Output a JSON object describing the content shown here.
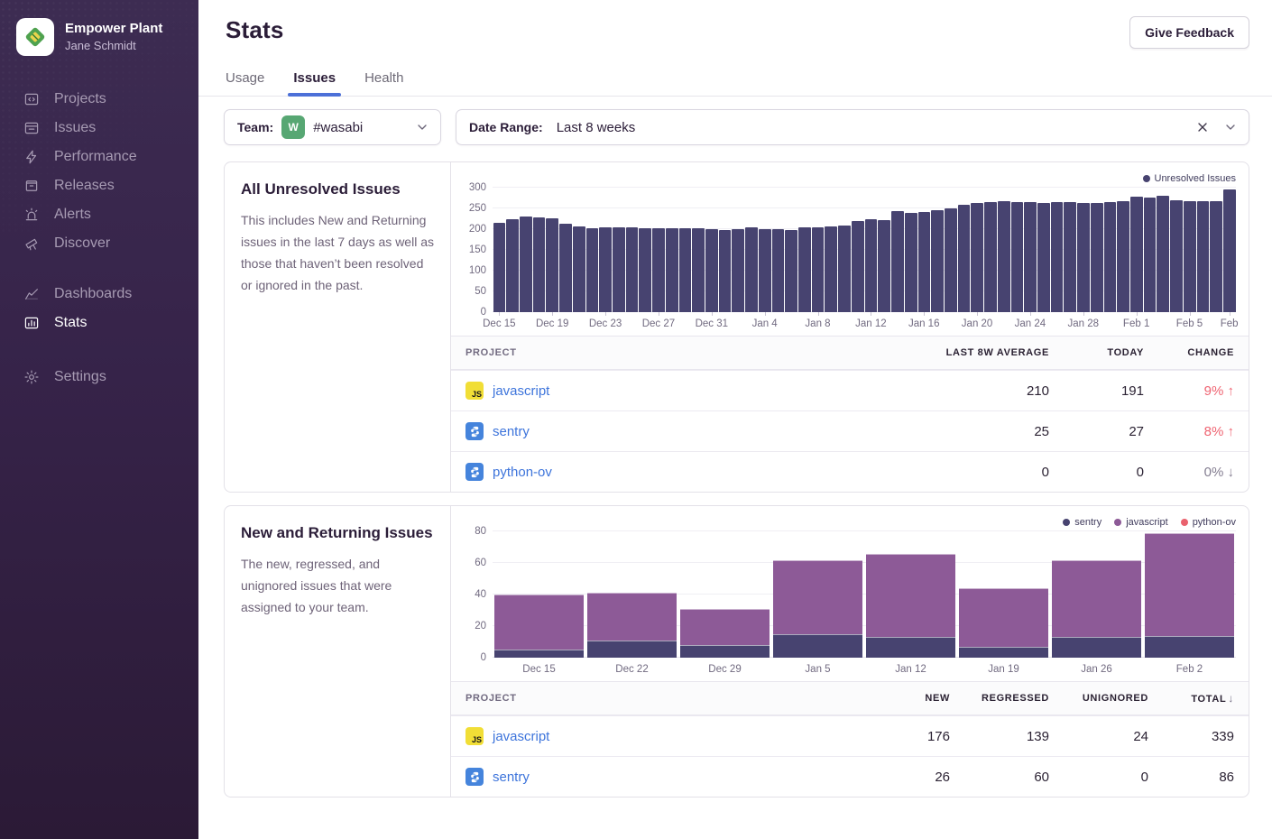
{
  "colors": {
    "accent_blue": "#3D74DB",
    "tab_underline": "#4C70D8",
    "change_bad_red": "#EF6472",
    "change_neutral_gray": "#847E91",
    "unresolved_bar": "#474370",
    "sentry_series": "#474370",
    "javascript_series": "#8D5A97",
    "python_ov_series": "#E9626E",
    "team_avatar_green": "#57A773",
    "js_icon_yellow": "#F1DE36",
    "python_icon_blue": "#4584DC"
  },
  "sidebar": {
    "org_name": "Empower Plant",
    "user_name": "Jane Schmidt",
    "nav_primary": [
      {
        "label": "Projects",
        "icon": "projects-icon",
        "active": false
      },
      {
        "label": "Issues",
        "icon": "issues-icon",
        "active": false
      },
      {
        "label": "Performance",
        "icon": "performance-icon",
        "active": false
      },
      {
        "label": "Releases",
        "icon": "releases-icon",
        "active": false
      },
      {
        "label": "Alerts",
        "icon": "alerts-icon",
        "active": false
      },
      {
        "label": "Discover",
        "icon": "discover-icon",
        "active": false
      }
    ],
    "nav_secondary": [
      {
        "label": "Dashboards",
        "icon": "dashboards-icon",
        "active": false
      },
      {
        "label": "Stats",
        "icon": "stats-icon",
        "active": true
      }
    ],
    "nav_tertiary": [
      {
        "label": "Settings",
        "icon": "settings-icon",
        "active": false
      }
    ]
  },
  "header": {
    "title": "Stats",
    "feedback_button": "Give Feedback"
  },
  "tabs": [
    {
      "label": "Usage",
      "active": false
    },
    {
      "label": "Issues",
      "active": true
    },
    {
      "label": "Health",
      "active": false
    }
  ],
  "filters": {
    "team_label": "Team:",
    "team_avatar_letter": "W",
    "team_value": "#wasabi",
    "date_label": "Date Range:",
    "date_value": "Last 8 weeks"
  },
  "cards": [
    {
      "title": "All Unresolved Issues",
      "description": "This includes New and Returning issues in the last 7 days as well as those that haven’t been resolved or ignored in the past.",
      "table": {
        "headers": [
          "PROJECT",
          "LAST 8W AVERAGE",
          "TODAY",
          "CHANGE"
        ],
        "rows": [
          {
            "project": "javascript",
            "platform": "javascript",
            "values": [
              "210",
              "191"
            ],
            "change": "9%",
            "change_dir": "up",
            "change_tone": "bad"
          },
          {
            "project": "sentry",
            "platform": "python",
            "values": [
              "25",
              "27"
            ],
            "change": "8%",
            "change_dir": "up",
            "change_tone": "bad"
          },
          {
            "project": "python-ov",
            "platform": "python",
            "values": [
              "0",
              "0"
            ],
            "change": "0%",
            "change_dir": "down",
            "change_tone": "neutral"
          }
        ]
      }
    },
    {
      "title": "New and Returning Issues",
      "description": "The new, regressed, and unignored issues that were assigned to your team.",
      "table": {
        "headers": [
          "PROJECT",
          "NEW",
          "REGRESSED",
          "UNIGNORED",
          "TOTAL"
        ],
        "sorted_by": "TOTAL",
        "sort_dir": "desc",
        "rows": [
          {
            "project": "javascript",
            "platform": "javascript",
            "values": [
              "176",
              "139",
              "24",
              "339"
            ]
          },
          {
            "project": "sentry",
            "platform": "python",
            "values": [
              "26",
              "60",
              "0",
              "86"
            ]
          }
        ]
      }
    }
  ],
  "chart_data": [
    {
      "type": "bar",
      "title": "All Unresolved Issues (daily, last 8 weeks)",
      "ylim": [
        0,
        300
      ],
      "yticks": [
        0,
        50,
        100,
        150,
        200,
        250,
        300
      ],
      "grid": true,
      "legend_position": "top-right",
      "x_tick_labels": [
        "Dec 15",
        "Dec 19",
        "Dec 23",
        "Dec 27",
        "Dec 31",
        "Jan 4",
        "Jan 8",
        "Jan 12",
        "Jan 16",
        "Jan 20",
        "Jan 24",
        "Jan 28",
        "Feb 1",
        "Feb 5",
        "Feb"
      ],
      "x_tick_indices": [
        0,
        4,
        8,
        12,
        16,
        20,
        24,
        28,
        32,
        36,
        40,
        44,
        48,
        52,
        55
      ],
      "series": [
        {
          "name": "Unresolved Issues",
          "color": "#474370",
          "values": [
            216,
            224,
            230,
            229,
            226,
            214,
            206,
            202,
            205,
            204,
            204,
            202,
            203,
            203,
            203,
            203,
            201,
            198,
            200,
            204,
            201,
            199,
            197,
            204,
            205,
            206,
            208,
            220,
            224,
            221,
            243,
            240,
            242,
            246,
            251,
            259,
            263,
            266,
            268,
            266,
            266,
            263,
            265,
            265,
            263,
            264,
            265,
            267,
            278,
            276,
            281,
            270,
            268,
            267,
            268,
            296
          ]
        }
      ]
    },
    {
      "type": "stacked-bar",
      "title": "New and Returning Issues (weekly, last 8 weeks)",
      "ylim": [
        0,
        80
      ],
      "yticks": [
        0,
        20,
        40,
        60,
        80
      ],
      "grid": true,
      "legend_position": "top-right",
      "categories": [
        "Dec 15",
        "Dec 22",
        "Dec 29",
        "Jan 5",
        "Jan 12",
        "Jan 19",
        "Jan 26",
        "Feb 2"
      ],
      "series": [
        {
          "name": "sentry",
          "color": "#474370",
          "values": [
            5,
            11,
            8,
            15,
            13,
            7,
            13,
            14
          ]
        },
        {
          "name": "javascript",
          "color": "#8D5A97",
          "values": [
            35,
            30,
            23,
            47,
            53,
            37,
            49,
            65
          ]
        },
        {
          "name": "python-ov",
          "color": "#E9626E",
          "values": [
            0,
            0,
            0,
            0,
            0,
            0,
            0,
            0
          ]
        }
      ]
    }
  ]
}
